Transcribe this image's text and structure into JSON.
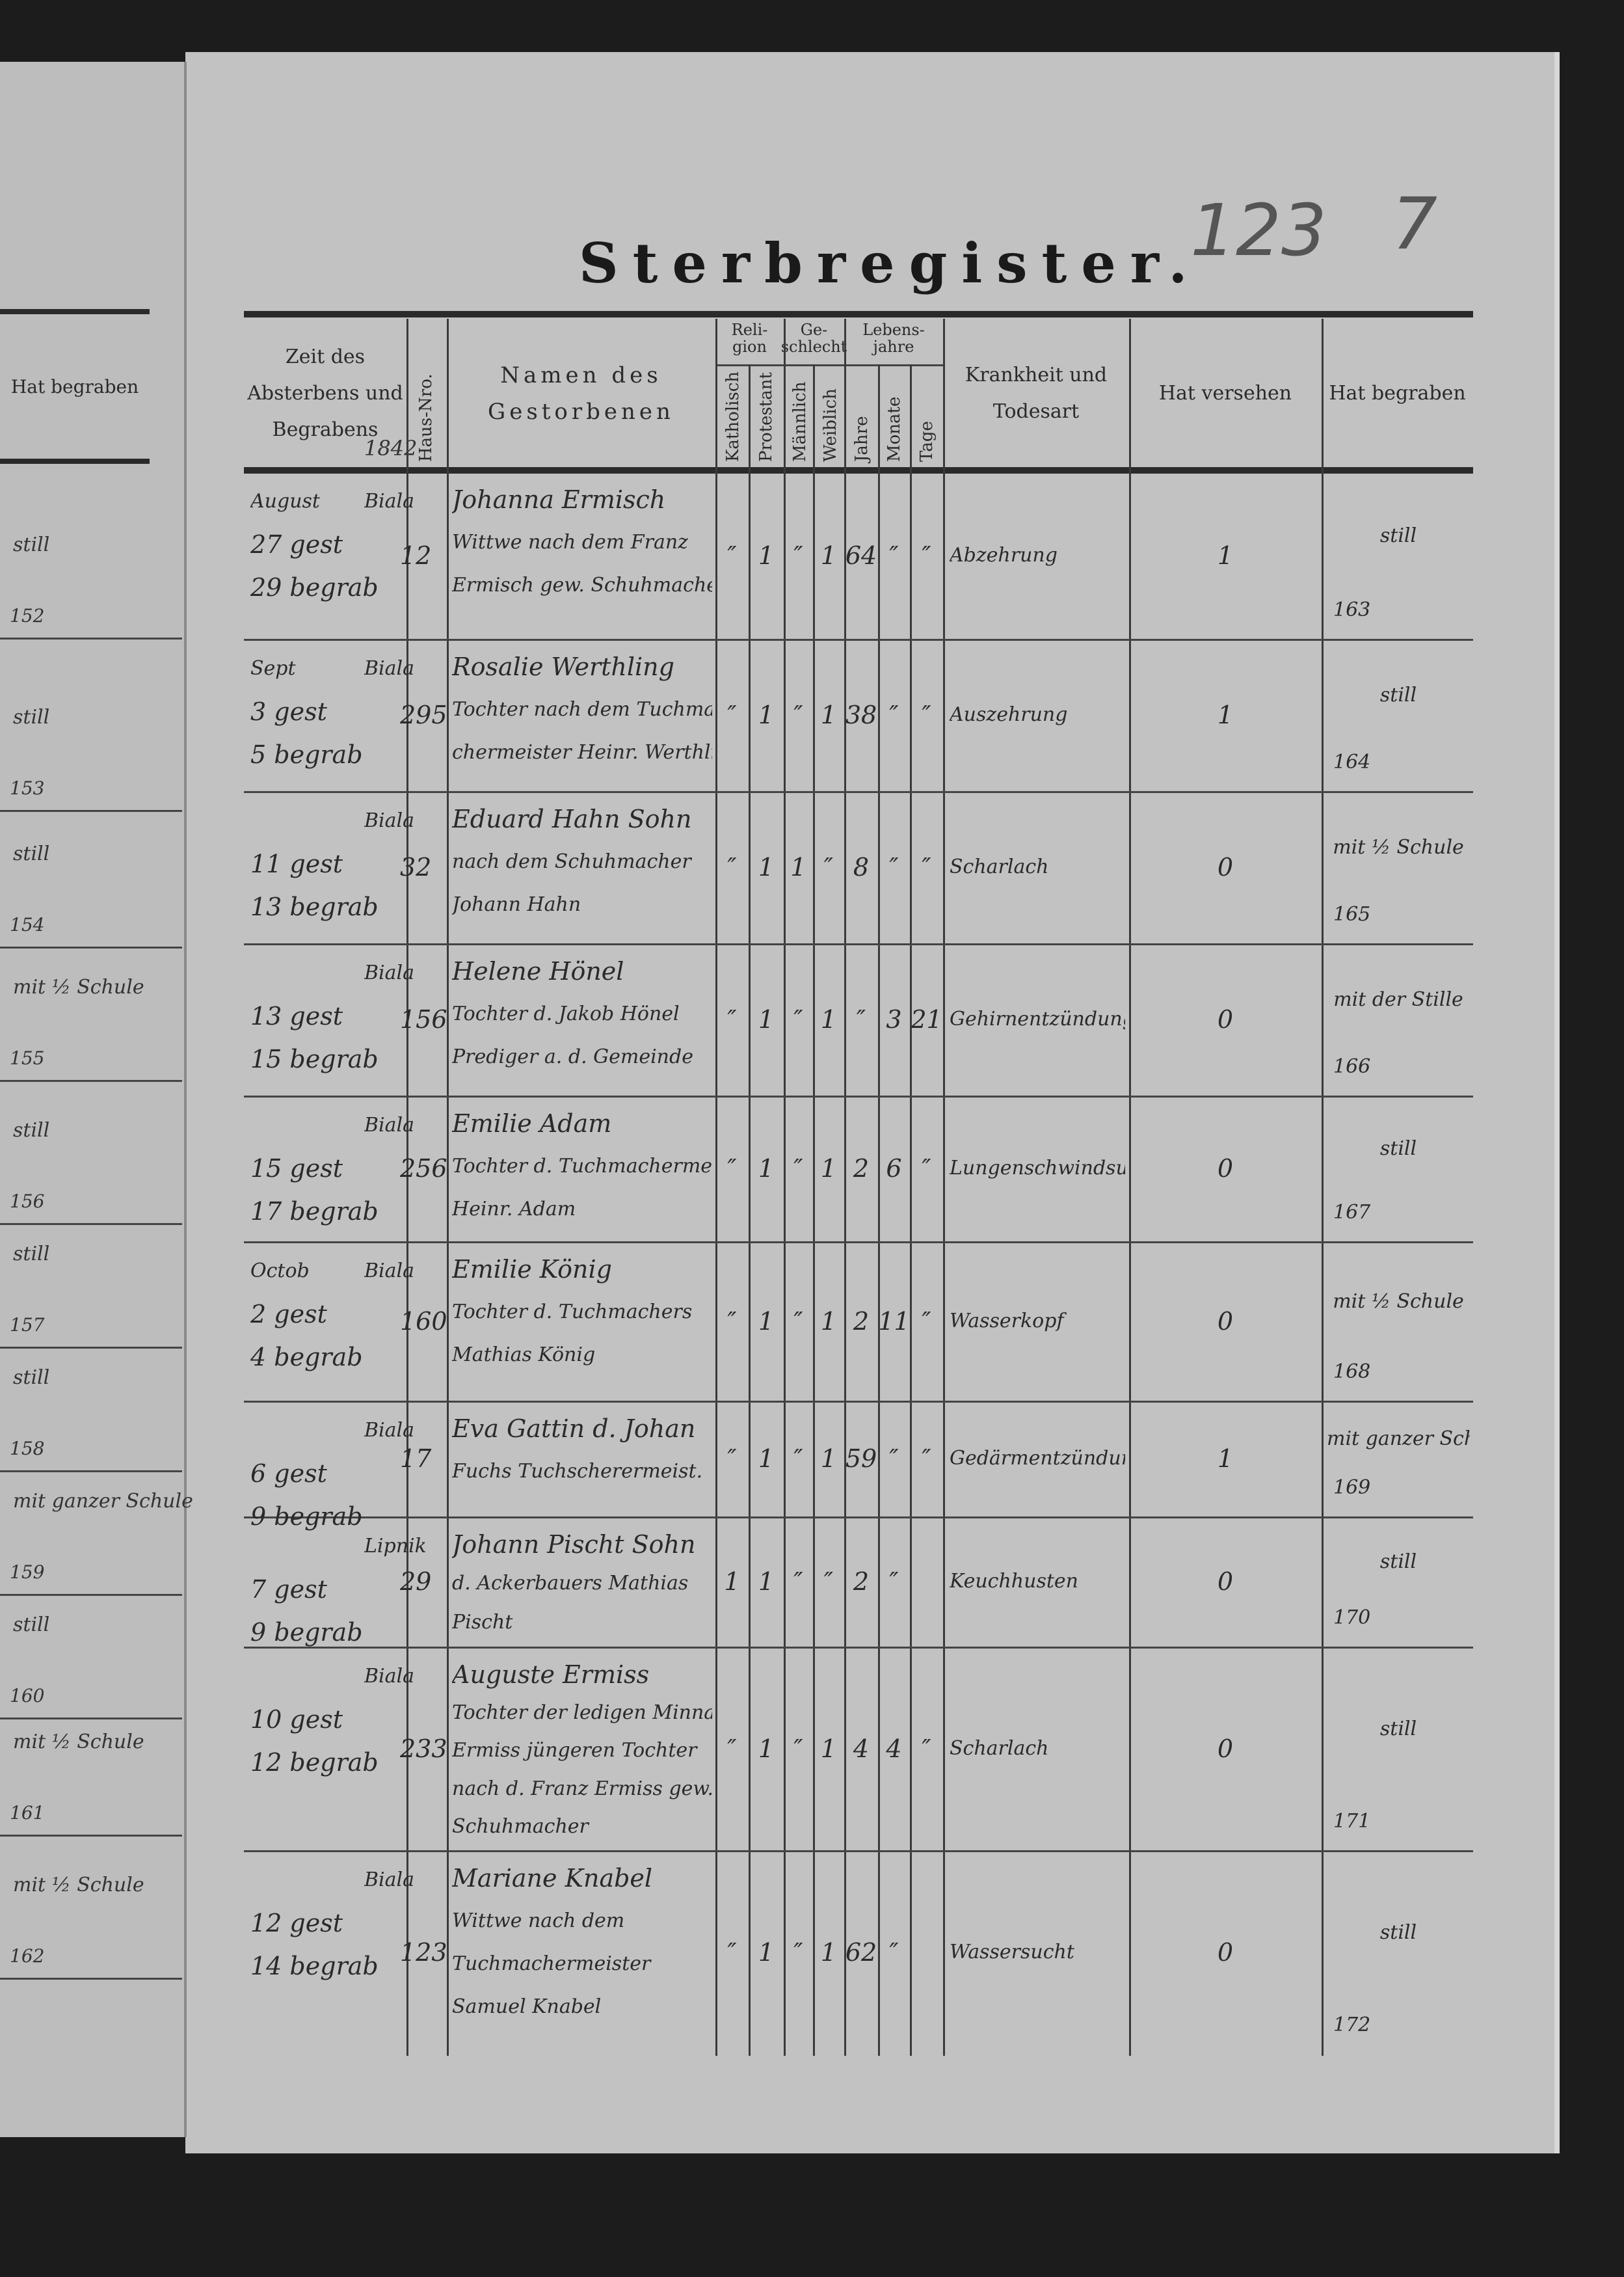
{
  "title": "Sterbregister.",
  "page_numbers": [
    "123",
    "7"
  ],
  "year_note": "1842",
  "headers": {
    "time": "Zeit des Absterbens und Begrabens",
    "house": "Haus-Nro.",
    "name": "Namen des Gestorbenen",
    "religion": "Reli-gion",
    "catholic": "Katholisch",
    "protestant": "Protestant",
    "sex": "Ge-schlecht",
    "male": "Männlich",
    "female": "Weiblich",
    "age": "Lebens-jahre",
    "years": "Jahre",
    "months": "Monate",
    "days": "Tage",
    "cause": "Krankheit und Todesart",
    "provided": "Hat versehen",
    "buried": "Hat begraben"
  },
  "left_page": {
    "header": "Hat begraben",
    "entries": [
      {
        "text": "still",
        "nr": "152"
      },
      {
        "text": "still",
        "nr": "153"
      },
      {
        "text": "still",
        "nr": "154"
      },
      {
        "text": "mit ½ Schule",
        "nr": "155"
      },
      {
        "text": "still",
        "nr": "156"
      },
      {
        "text": "still",
        "nr": "157"
      },
      {
        "text": "still",
        "nr": "158"
      },
      {
        "text": "mit ganzer Schule",
        "nr": "159"
      },
      {
        "text": "still",
        "nr": "160"
      },
      {
        "text": "mit ½ Schule",
        "nr": "161"
      },
      {
        "text": "mit ½ Schule",
        "nr": "162"
      }
    ]
  },
  "rows": [
    {
      "date": [
        "August",
        "27 gest",
        "29 begrab"
      ],
      "place": "Biala",
      "house": "12",
      "name": [
        "Johanna Ermisch",
        "Wittwe nach dem Franz",
        "Ermisch gew. Schuhmacher"
      ],
      "kath": "″",
      "prot": "1",
      "male": "″",
      "female": "1",
      "years": "64",
      "months": "″",
      "days": "″",
      "cause": "Abzehrung",
      "provided": "1",
      "buried": "still",
      "nr": "163"
    },
    {
      "date": [
        "Sept",
        "3 gest",
        "5 begrab"
      ],
      "place": "Biala",
      "house": "295",
      "name": [
        "Rosalie Werthling",
        "Tochter nach dem Tuchma-",
        "chermeister Heinr. Werthling"
      ],
      "kath": "″",
      "prot": "1",
      "male": "″",
      "female": "1",
      "years": "38",
      "months": "″",
      "days": "″",
      "cause": "Auszehrung",
      "provided": "1",
      "buried": "still",
      "nr": "164"
    },
    {
      "date": [
        "",
        "11 gest",
        "13 begrab"
      ],
      "place": "Biala",
      "house": "32",
      "name": [
        "Eduard Hahn Sohn",
        "nach dem Schuhmacher",
        "Johann Hahn"
      ],
      "kath": "″",
      "prot": "1",
      "male": "1",
      "female": "″",
      "years": "8",
      "months": "″",
      "days": "″",
      "cause": "Scharlach",
      "provided": "0",
      "buried": "mit ½ Schule",
      "nr": "165"
    },
    {
      "date": [
        "",
        "13 gest",
        "15 begrab"
      ],
      "place": "Biala",
      "house": "156",
      "name": [
        "Helene Hönel",
        "Tochter d. Jakob Hönel",
        "Prediger a. d. Gemeinde"
      ],
      "kath": "″",
      "prot": "1",
      "male": "″",
      "female": "1",
      "years": "″",
      "months": "3",
      "days": "21",
      "cause": "Gehirnentzündung",
      "provided": "0",
      "buried": "mit der Stille",
      "nr": "166"
    },
    {
      "date": [
        "",
        "15 gest",
        "17 begrab"
      ],
      "place": "Biala",
      "house": "256",
      "name": [
        "Emilie Adam",
        "Tochter d. Tuchmachermeist.",
        "Heinr. Adam"
      ],
      "kath": "″",
      "prot": "1",
      "male": "″",
      "female": "1",
      "years": "2",
      "months": "6",
      "days": "″",
      "cause": "Lungenschwindsucht",
      "provided": "0",
      "buried": "still",
      "nr": "167"
    },
    {
      "date": [
        "Octob",
        "2 gest",
        "4 begrab"
      ],
      "place": "Biala",
      "house": "160",
      "name": [
        "Emilie König",
        "Tochter d. Tuchmachers",
        "Mathias König"
      ],
      "kath": "″",
      "prot": "1",
      "male": "″",
      "female": "1",
      "years": "2",
      "months": "11",
      "days": "″",
      "cause": "Wasserkopf",
      "provided": "0",
      "buried": "mit ½ Schule",
      "nr": "168"
    },
    {
      "date": [
        "",
        "6 gest",
        "9 begrab"
      ],
      "place": "Biala",
      "house": "17",
      "name": [
        "Eva Gattin d. Johan",
        "Fuchs Tuchscherermeist."
      ],
      "kath": "″",
      "prot": "1",
      "male": "″",
      "female": "1",
      "years": "59",
      "months": "″",
      "days": "″",
      "cause": "Gedärmentzündung",
      "provided": "1",
      "buried": "mit ganzer Schule",
      "nr": "169"
    },
    {
      "date": [
        "",
        "7 gest",
        "9 begrab"
      ],
      "place": "Lipnik",
      "house": "29",
      "name": [
        "Johann Pischt Sohn",
        "d. Ackerbauers Mathias",
        "Pischt"
      ],
      "kath": "1",
      "prot": "1",
      "male": "″",
      "female": "″",
      "years": "2",
      "months": "″",
      "days": "",
      "cause": "Keuchhusten",
      "provided": "0",
      "buried": "still",
      "nr": "170"
    },
    {
      "date": [
        "",
        "10 gest",
        "12 begrab"
      ],
      "place": "Biala",
      "house": "233",
      "name": [
        "Auguste Ermiss",
        "Tochter der ledigen Minna",
        "Ermiss jüngeren Tochter",
        "nach d. Franz Ermiss gew.",
        "Schuhmacher"
      ],
      "kath": "″",
      "prot": "1",
      "male": "″",
      "female": "1",
      "years": "4",
      "months": "4",
      "days": "″",
      "cause": "Scharlach",
      "provided": "0",
      "buried": "still",
      "nr": "171"
    },
    {
      "date": [
        "",
        "12 gest",
        "14 begrab"
      ],
      "place": "Biala",
      "house": "123",
      "name": [
        "Mariane Knabel",
        "Wittwe nach dem",
        "Tuchmachermeister",
        "Samuel Knabel"
      ],
      "kath": "″",
      "prot": "1",
      "male": "″",
      "female": "1",
      "years": "62",
      "months": "″",
      "days": "",
      "cause": "Wassersucht",
      "provided": "0",
      "buried": "still",
      "nr": "172"
    }
  ]
}
